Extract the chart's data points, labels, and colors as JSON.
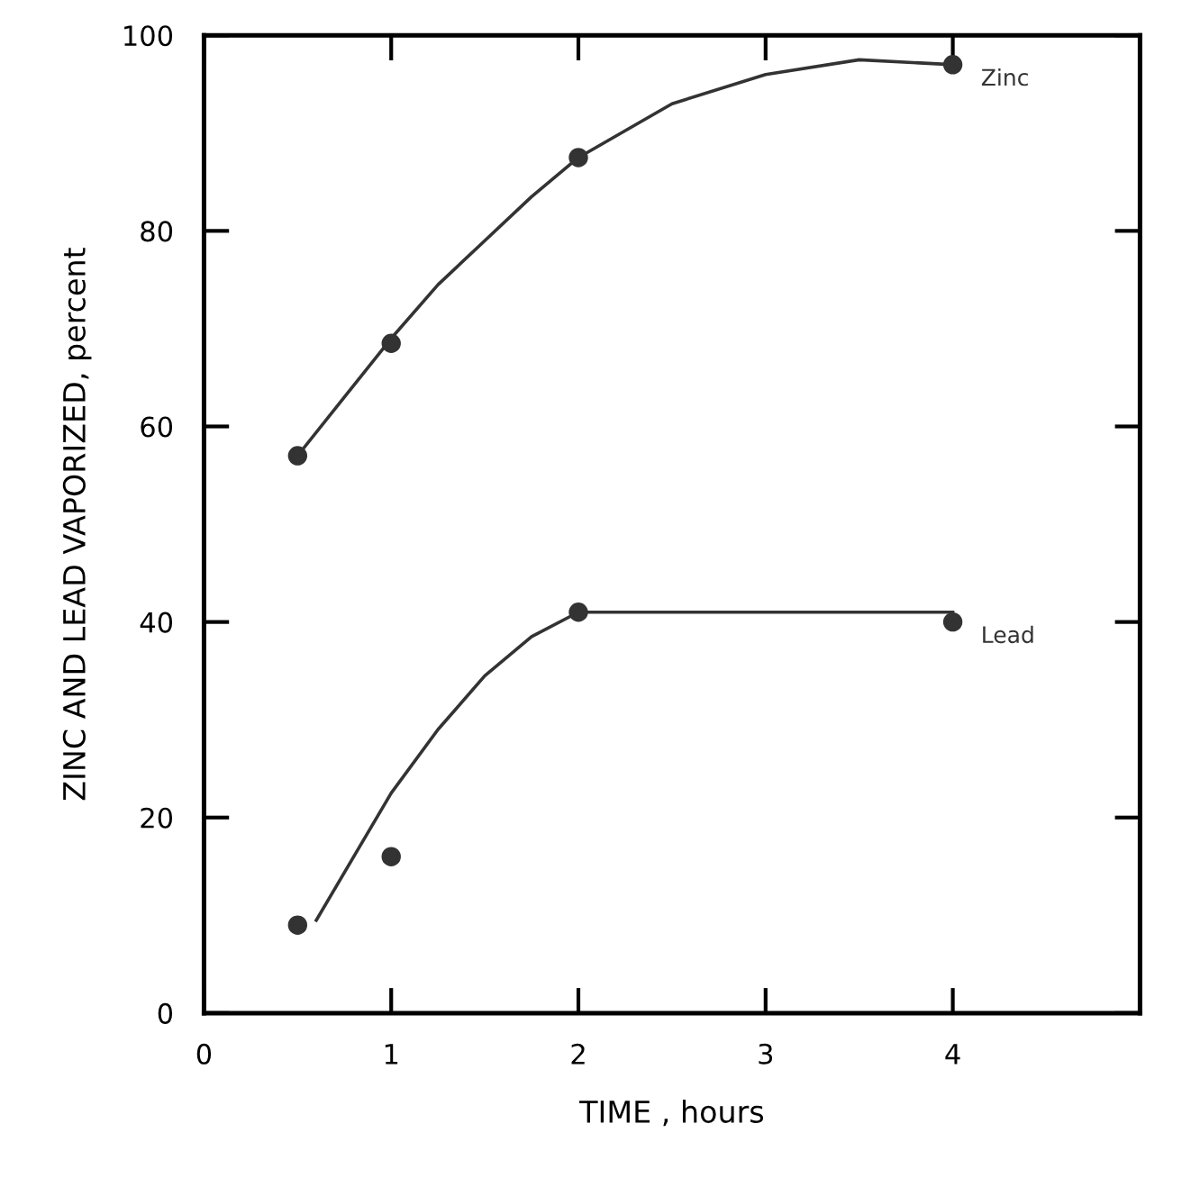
{
  "chart_data": {
    "type": "scatter",
    "xlabel": "TIME , hours",
    "ylabel": "ZINC AND LEAD VAPORIZED, percent",
    "xlim": [
      0,
      5
    ],
    "ylim": [
      0,
      100
    ],
    "xticks": [
      0,
      1,
      2,
      3,
      4
    ],
    "yticks": [
      0,
      20,
      40,
      60,
      80,
      100
    ],
    "grid": false,
    "legend": false,
    "series": [
      {
        "name": "Zinc",
        "marker": "circle",
        "color": "#333333",
        "x": [
          0.5,
          1,
          2,
          4
        ],
        "values": [
          57,
          68.5,
          87.5,
          97
        ]
      },
      {
        "name": "Lead",
        "marker": "circle",
        "color": "#333333",
        "x": [
          0.5,
          1,
          2,
          4
        ],
        "values": [
          9,
          16,
          41,
          40
        ]
      },
      {
        "type": "line",
        "marker": "none",
        "color": "#333333",
        "x": [
          0.5,
          0.75,
          1,
          1.25,
          1.5,
          1.75,
          2,
          2.5,
          3,
          3.5,
          4
        ],
        "values": [
          57,
          63,
          69,
          74.5,
          79,
          83.5,
          87.5,
          93,
          96,
          97.5,
          97
        ]
      },
      {
        "type": "line",
        "marker": "none",
        "color": "#333333",
        "x": [
          0.6,
          0.8,
          1,
          1.25,
          1.5,
          1.75,
          2,
          3,
          4
        ],
        "values": [
          9.5,
          16,
          22.5,
          29,
          34.5,
          38.5,
          41,
          41,
          41
        ]
      }
    ]
  }
}
